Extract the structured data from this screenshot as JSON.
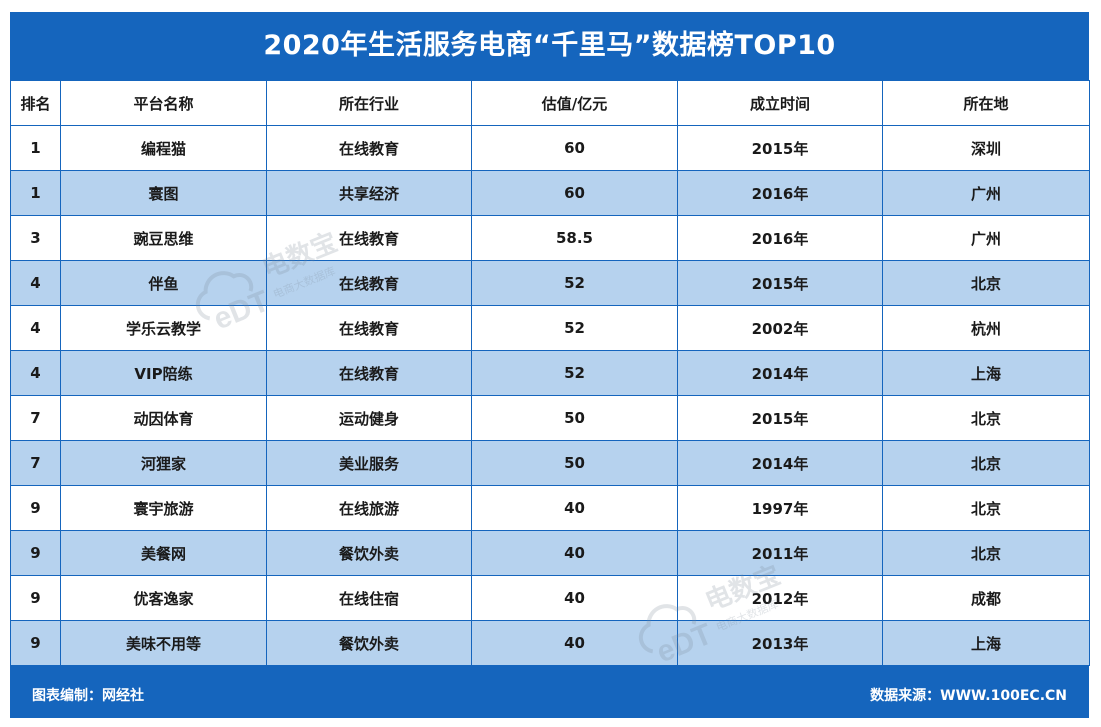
{
  "title": "2020年生活服务电商“千里马”数据榜TOP10",
  "columns": [
    "排名",
    "平台名称",
    "所在行业",
    "估值/亿元",
    "成立时间",
    "所在地"
  ],
  "rows": [
    [
      "1",
      "编程猫",
      "在线教育",
      "60",
      "2015年",
      "深圳"
    ],
    [
      "1",
      "寰图",
      "共享经济",
      "60",
      "2016年",
      "广州"
    ],
    [
      "3",
      "豌豆思维",
      "在线教育",
      "58.5",
      "2016年",
      "广州"
    ],
    [
      "4",
      "伴鱼",
      "在线教育",
      "52",
      "2015年",
      "北京"
    ],
    [
      "4",
      "学乐云教学",
      "在线教育",
      "52",
      "2002年",
      "杭州"
    ],
    [
      "4",
      "VIP陪练",
      "在线教育",
      "52",
      "2014年",
      "上海"
    ],
    [
      "7",
      "动因体育",
      "运动健身",
      "50",
      "2015年",
      "北京"
    ],
    [
      "7",
      "河狸家",
      "美业服务",
      "50",
      "2014年",
      "北京"
    ],
    [
      "9",
      "寰宇旅游",
      "在线旅游",
      "40",
      "1997年",
      "北京"
    ],
    [
      "9",
      "美餐网",
      "餐饮外卖",
      "40",
      "2011年",
      "北京"
    ],
    [
      "9",
      "优客逸家",
      "在线住宿",
      "40",
      "2012年",
      "成都"
    ],
    [
      "9",
      "美味不用等",
      "餐饮外卖",
      "40",
      "2013年",
      "上海"
    ]
  ],
  "footer": {
    "left": "图表编制：网经社",
    "right": "数据来源：WWW.100EC.CN"
  },
  "watermark": {
    "brand": "eDT",
    "text": "电数宝",
    "sub": "电商大数据库"
  },
  "colors": {
    "frame": "#1565bd",
    "stripe": "#b6d2ee"
  }
}
